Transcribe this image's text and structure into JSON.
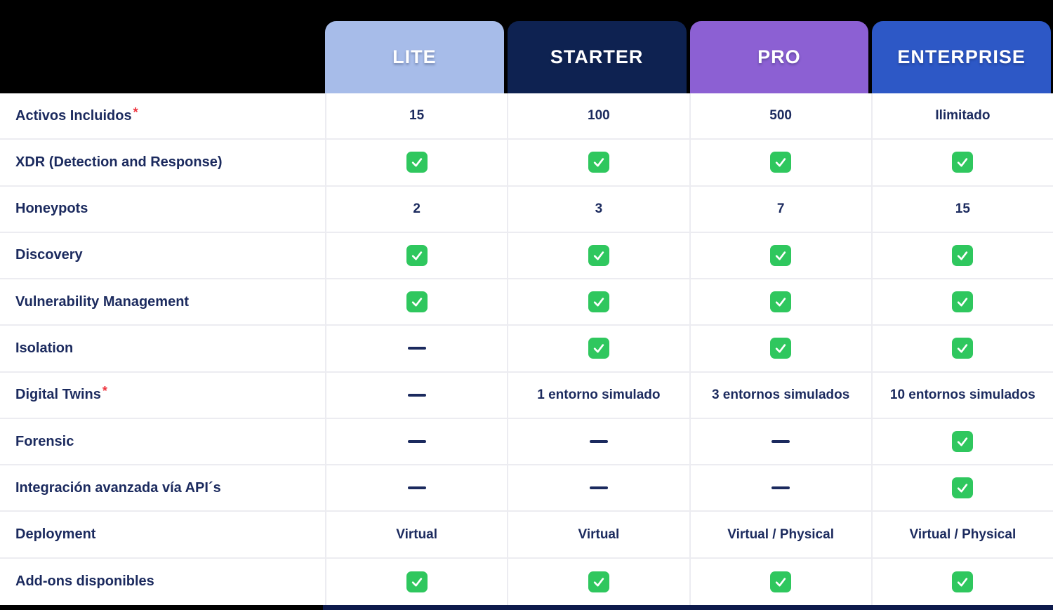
{
  "plans": [
    {
      "label": "LITE",
      "color": "#A7BCE9"
    },
    {
      "label": "STARTER",
      "color": "#0E2251"
    },
    {
      "label": "PRO",
      "color": "#8C60D3"
    },
    {
      "label": "ENTERPRISE",
      "color": "#2D58C6"
    }
  ],
  "required_marker": "*",
  "icons": {
    "check": "check-icon",
    "dash": "dash-icon"
  },
  "colors": {
    "check_green": "#2FC75E",
    "text_navy": "#1B2A5E",
    "asterisk_red": "#EE333D",
    "row_border": "#ECECF1",
    "bottom_bar_navy": "#0D1A4B",
    "background": "#000000"
  },
  "rows": [
    {
      "label": "Activos Incluidos",
      "required": true,
      "values": [
        {
          "type": "text",
          "text": "15"
        },
        {
          "type": "text",
          "text": "100"
        },
        {
          "type": "text",
          "text": "500"
        },
        {
          "type": "text",
          "text": "Ilimitado"
        }
      ]
    },
    {
      "label": "XDR (Detection and Response)",
      "required": false,
      "values": [
        {
          "type": "check"
        },
        {
          "type": "check"
        },
        {
          "type": "check"
        },
        {
          "type": "check"
        }
      ]
    },
    {
      "label": "Honeypots",
      "required": false,
      "values": [
        {
          "type": "text",
          "text": "2"
        },
        {
          "type": "text",
          "text": "3"
        },
        {
          "type": "text",
          "text": "7"
        },
        {
          "type": "text",
          "text": "15"
        }
      ]
    },
    {
      "label": "Discovery",
      "required": false,
      "values": [
        {
          "type": "check"
        },
        {
          "type": "check"
        },
        {
          "type": "check"
        },
        {
          "type": "check"
        }
      ]
    },
    {
      "label": "Vulnerability Management",
      "required": false,
      "values": [
        {
          "type": "check"
        },
        {
          "type": "check"
        },
        {
          "type": "check"
        },
        {
          "type": "check"
        }
      ]
    },
    {
      "label": "Isolation",
      "required": false,
      "values": [
        {
          "type": "dash"
        },
        {
          "type": "check"
        },
        {
          "type": "check"
        },
        {
          "type": "check"
        }
      ]
    },
    {
      "label": "Digital Twins",
      "required": true,
      "values": [
        {
          "type": "dash"
        },
        {
          "type": "text",
          "text": "1 entorno simulado"
        },
        {
          "type": "text",
          "text": "3 entornos simulados"
        },
        {
          "type": "text",
          "text": "10 entornos simulados"
        }
      ]
    },
    {
      "label": "Forensic",
      "required": false,
      "values": [
        {
          "type": "dash"
        },
        {
          "type": "dash"
        },
        {
          "type": "dash"
        },
        {
          "type": "check"
        }
      ]
    },
    {
      "label": "Integración avanzada vía API´s",
      "required": false,
      "values": [
        {
          "type": "dash"
        },
        {
          "type": "dash"
        },
        {
          "type": "dash"
        },
        {
          "type": "check"
        }
      ]
    },
    {
      "label": "Deployment",
      "required": false,
      "values": [
        {
          "type": "text",
          "text": "Virtual"
        },
        {
          "type": "text",
          "text": "Virtual"
        },
        {
          "type": "text",
          "text": "Virtual / Physical"
        },
        {
          "type": "text",
          "text": "Virtual / Physical"
        }
      ]
    },
    {
      "label": "Add-ons disponibles",
      "required": false,
      "values": [
        {
          "type": "check"
        },
        {
          "type": "check"
        },
        {
          "type": "check"
        },
        {
          "type": "check"
        }
      ]
    }
  ]
}
